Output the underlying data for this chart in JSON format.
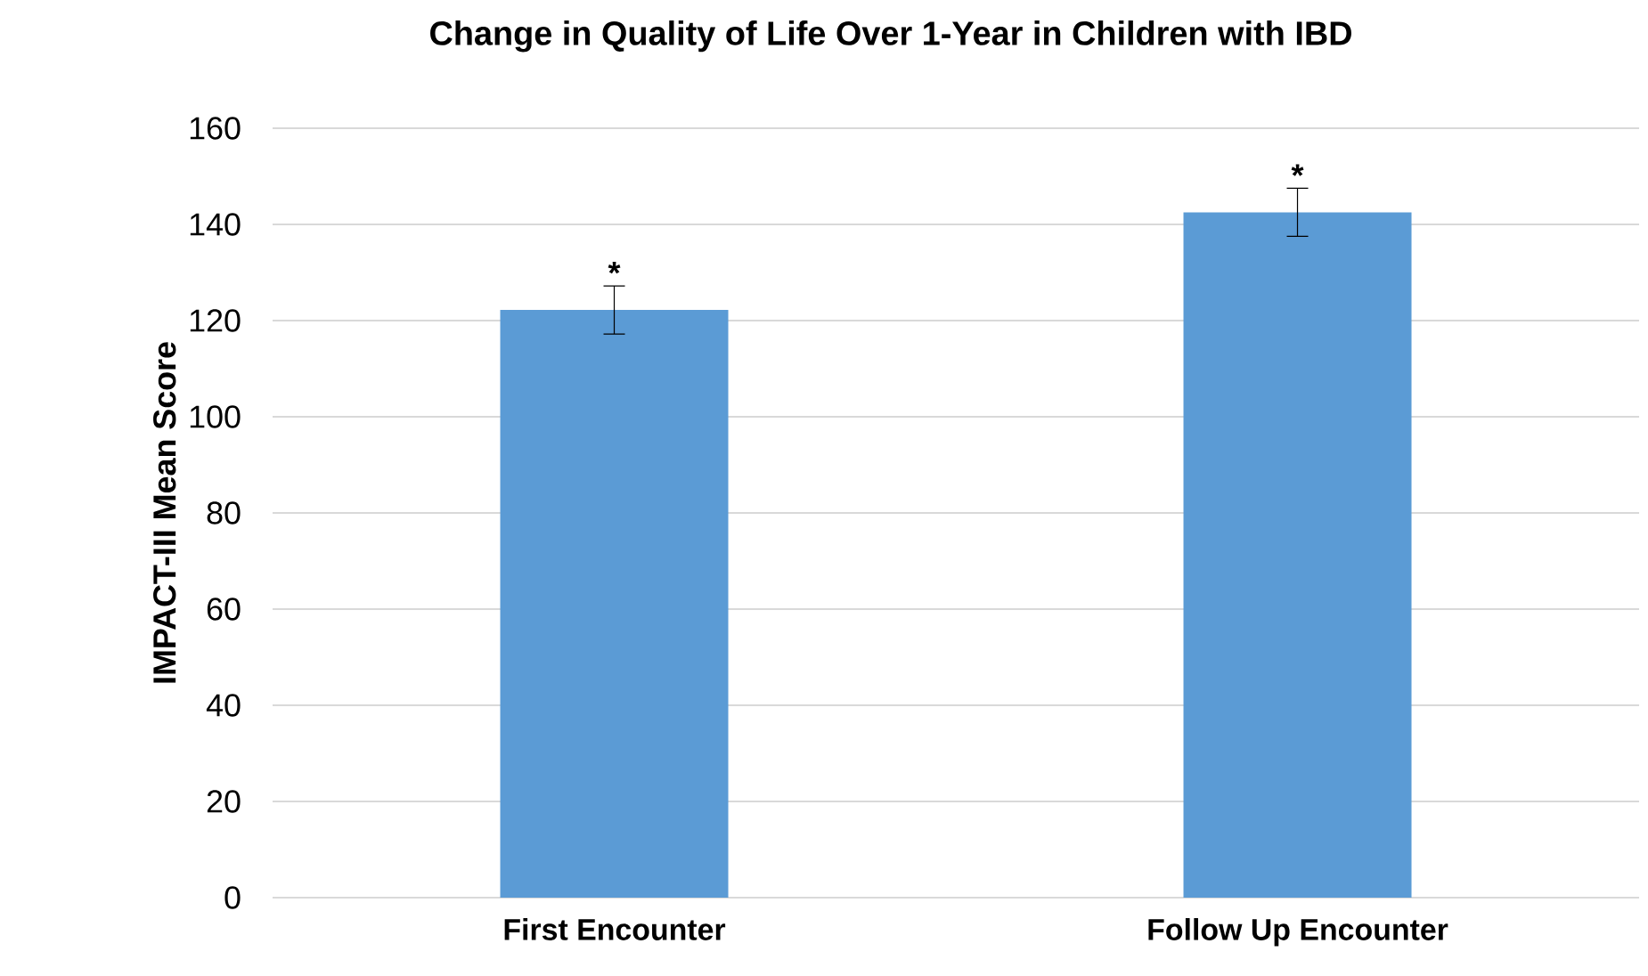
{
  "chart_data": {
    "type": "bar",
    "title": "Change in Quality of Life Over 1-Year in Children with IBD",
    "ylabel": "IMPACT-III Mean Score",
    "categories": [
      "First Encounter",
      "Follow Up Encounter"
    ],
    "values": [
      122.2,
      142.5
    ],
    "errors": [
      5,
      5
    ],
    "color": "#5b9bd5",
    "ylim": [
      0,
      160
    ],
    "yticks": [
      0,
      20,
      40,
      60,
      80,
      100,
      120,
      140,
      160
    ],
    "grid": "y",
    "annotations": [
      "*",
      "*"
    ]
  }
}
